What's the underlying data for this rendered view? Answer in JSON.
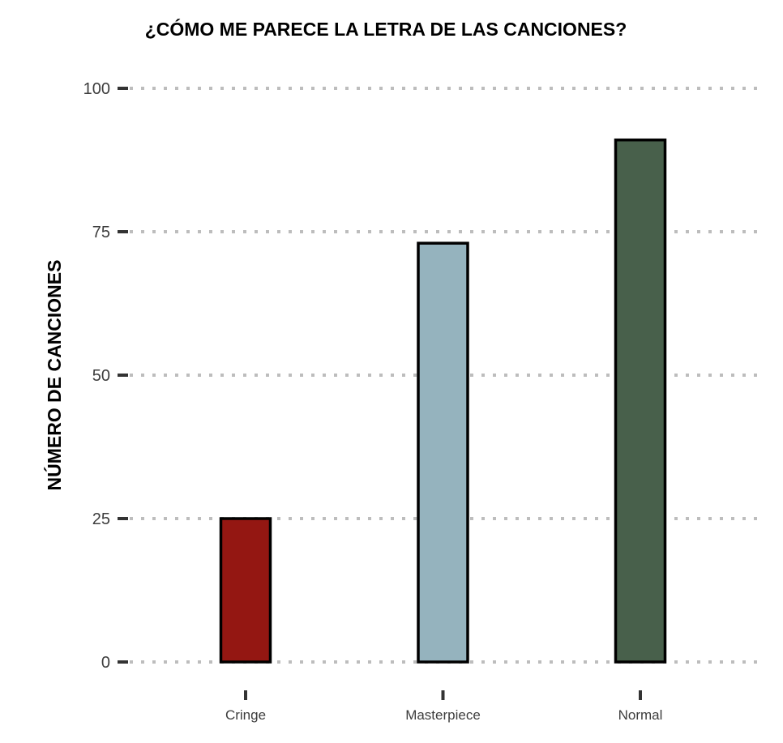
{
  "chart_data": {
    "type": "bar",
    "title": "¿CÓMO ME PARECE LA LETRA DE LAS CANCIONES?",
    "xlabel": "",
    "ylabel": "NÚMERO DE CANCIONES",
    "categories": [
      "Cringe",
      "Masterpiece",
      "Normal"
    ],
    "values": [
      25,
      73,
      91
    ],
    "colors": [
      "#941712",
      "#95b3be",
      "#48604b"
    ],
    "ylim": [
      0,
      100
    ],
    "yticks": [
      0,
      25,
      50,
      75,
      100
    ],
    "ytick_labels": [
      "0",
      "25",
      "50",
      "75",
      "100"
    ],
    "grid": "horizontal dotted",
    "legend": "none"
  }
}
